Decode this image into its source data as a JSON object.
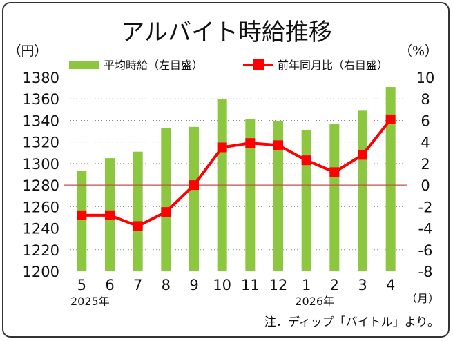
{
  "chart_data": {
    "type": "bar",
    "title": "アルバイト時給推移",
    "left_unit": "（円）",
    "right_unit": "（%）",
    "x_unit": "（月）",
    "note": "注．ディップ「バイトル」より。",
    "categories": [
      "5",
      "6",
      "7",
      "8",
      "9",
      "10",
      "11",
      "12",
      "1",
      "2",
      "3",
      "4"
    ],
    "year_labels": [
      {
        "index": 0,
        "text": "2025年"
      },
      {
        "index": 8,
        "text": "2026年"
      }
    ],
    "series": [
      {
        "name": "平均時給（左目盛）",
        "type": "bar",
        "axis": "left",
        "color": "#8dc63f",
        "values": [
          1293,
          1305,
          1311,
          1333,
          1334,
          1360,
          1341,
          1339,
          1331,
          1337,
          1349,
          1371
        ]
      },
      {
        "name": "前年同月比（右目盛）",
        "type": "line",
        "axis": "right",
        "color": "#ff0000",
        "values": [
          -2.8,
          -2.8,
          -3.8,
          -2.5,
          0.0,
          3.5,
          3.9,
          3.7,
          2.3,
          1.2,
          2.8,
          6.1
        ]
      }
    ],
    "y_left": {
      "min": 1200,
      "max": 1380,
      "step": 20
    },
    "y_right": {
      "min": -8,
      "max": 10,
      "step": 2
    },
    "reference_line": {
      "axis": "right",
      "value": 0,
      "color": "#c0504d"
    },
    "grid": true,
    "legend_position": "top"
  }
}
